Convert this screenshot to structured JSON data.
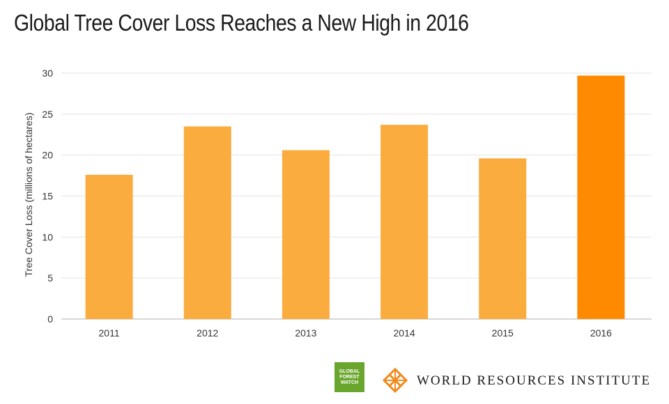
{
  "title": "Global Tree Cover Loss Reaches a New High in 2016",
  "chart_data": {
    "type": "bar",
    "title": "Global Tree Cover Loss Reaches a New High in 2016",
    "xlabel": "",
    "ylabel": "Tree Cover Loss (millions of hectares)",
    "categories": [
      "2011",
      "2012",
      "2013",
      "2014",
      "2015",
      "2016"
    ],
    "values": [
      17.6,
      23.5,
      20.6,
      23.7,
      19.6,
      29.7
    ],
    "ylim": [
      0,
      30
    ],
    "yticks": [
      0,
      5,
      10,
      15,
      20,
      25,
      30
    ],
    "grid": true,
    "bar_color": "#fbac3f",
    "highlight_color": "#fe8a01",
    "highlight_category": "2016"
  },
  "footer": {
    "gfw_logo_lines": [
      "GLOBAL",
      "FOREST",
      "WATCH"
    ],
    "gfw_color": "#6aa62e",
    "wri_name": "WORLD RESOURCES INSTITUTE",
    "wri_icon": "wri-lattice-icon",
    "wri_color": "#f08a1c"
  }
}
